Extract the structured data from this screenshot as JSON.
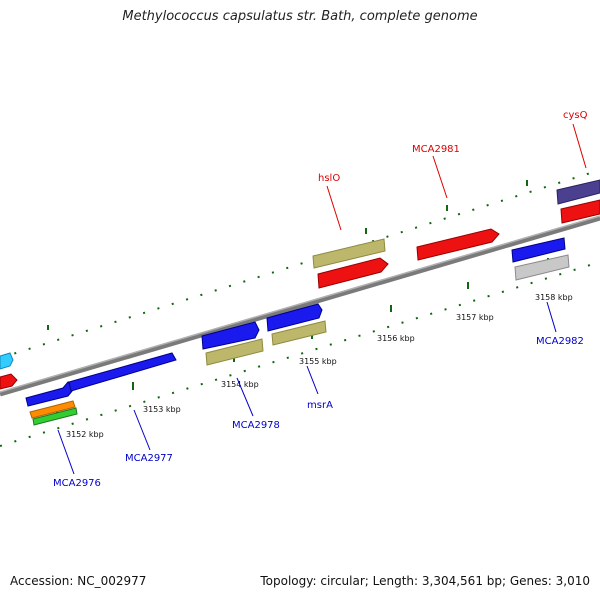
{
  "title": "Methylococcus capsulatus str. Bath, complete genome",
  "footer": {
    "accession": "Accession: NC_002977",
    "summary": "Topology: circular; Length: 3,304,561 bp; Genes: 3,010"
  },
  "ticks": [
    {
      "label": "3152 kbp"
    },
    {
      "label": "3153 kbp"
    },
    {
      "label": "3154 kbp"
    },
    {
      "label": "3155 kbp"
    },
    {
      "label": "3156 kbp"
    },
    {
      "label": "3157 kbp"
    },
    {
      "label": "3158 kbp"
    }
  ],
  "gene_labels": [
    {
      "text": "MCA2976",
      "color": "#0000cc"
    },
    {
      "text": "MCA2977",
      "color": "#0000cc"
    },
    {
      "text": "MCA2978",
      "color": "#0000cc"
    },
    {
      "text": "msrA",
      "color": "#0000cc"
    },
    {
      "text": "MCA2982",
      "color": "#0000cc"
    },
    {
      "text": "hslO",
      "color": "#dd0000"
    },
    {
      "text": "MCA2981",
      "color": "#dd0000"
    },
    {
      "text": "cysQ",
      "color": "#dd0000"
    }
  ],
  "colors": {
    "backbone": "#888888",
    "gene_blue": "#1a1aee",
    "gene_red": "#ee1111",
    "gene_khaki": "#bdb76b",
    "gene_gray": "#c8c8c8",
    "gene_cyan": "#33ccff",
    "gene_orange": "#ff8c00",
    "gene_green": "#33cc33",
    "gene_purple": "#4b3f8f",
    "tick_mark": "#116611"
  }
}
